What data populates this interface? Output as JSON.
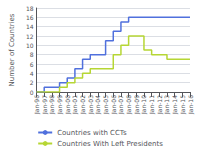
{
  "chart_data": {
    "type": "step",
    "categories": [
      "Jan-96",
      "Jan-97",
      "Jan-98",
      "Jan-99",
      "Jan-00",
      "Jan-01",
      "Jan-02",
      "Jan-03",
      "Jan-04",
      "Jan-05",
      "Jan-06",
      "Jan-07",
      "Jan-08",
      "Jan-09",
      "Jan-10",
      "Jan-11",
      "Jan-12",
      "Jan-13",
      "Jan-14",
      "Jan-15",
      "Jan-16"
    ],
    "series": [
      {
        "name": "Countries with CCTs",
        "values": [
          0,
          1,
          1,
          2,
          3,
          5,
          7,
          8,
          8,
          11,
          13,
          15,
          16,
          16,
          16,
          16,
          16,
          16,
          16,
          16,
          16
        ]
      },
      {
        "name": "Countries With Left Presidents",
        "values": [
          0,
          0,
          0,
          1,
          2,
          3,
          4,
          5,
          5,
          5,
          8,
          10,
          12,
          12,
          9,
          8,
          8,
          7,
          7,
          7,
          7
        ]
      }
    ],
    "ylabel": "Number of Countries",
    "ylim": [
      0,
      18
    ],
    "yticks": [
      0,
      2,
      4,
      6,
      8,
      10,
      12,
      14,
      16,
      18
    ],
    "grid": true,
    "legend": "bottom"
  }
}
